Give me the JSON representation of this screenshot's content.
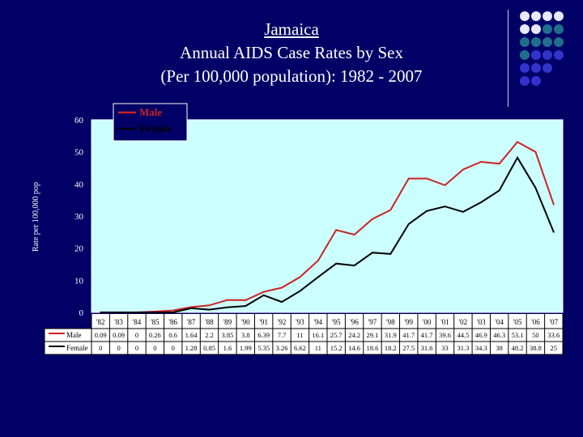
{
  "title": {
    "line1": "Jamaica",
    "line2": "Annual AIDS Case Rates by Sex",
    "line3": "(Per 100,000 population): 1982 - 2007"
  },
  "colors": {
    "background": "#000066",
    "plot_area": "#ccffff",
    "male": "#cc2222",
    "female": "#000000",
    "decor_light": "#e8e8ff",
    "decor_teal": "#1f6f8b",
    "decor_blue": "#3333cc"
  },
  "chart_data": {
    "type": "line",
    "title": "Jamaica Annual AIDS Case Rates by Sex (Per 100,000 population): 1982 - 2007",
    "xlabel": "",
    "ylabel": "Rate per 100,000 pop",
    "ylim": [
      0,
      60
    ],
    "yticks": [
      "0",
      "10",
      "20",
      "30",
      "40",
      "50",
      "60"
    ],
    "categories": [
      "'82",
      "'83",
      "'84",
      "'85",
      "'86",
      "'87",
      "'88",
      "'89",
      "'90",
      "'91",
      "'92",
      "'93",
      "'94",
      "'95",
      "'96",
      "'97",
      "'98",
      "'99",
      "'00",
      "'01",
      "'02",
      "'03",
      "'04",
      "'05",
      "'06",
      "'07"
    ],
    "legend_position": "top-left",
    "series": [
      {
        "name": "Male",
        "values": [
          0.09,
          0.09,
          0,
          0.26,
          0.6,
          1.64,
          2.2,
          3.85,
          3.8,
          6.39,
          7.7,
          11,
          16.1,
          25.7,
          24.2,
          29.1,
          31.9,
          41.7,
          41.7,
          39.6,
          44.5,
          46.9,
          46.3,
          53.1,
          50,
          33.6
        ],
        "labels": [
          "0.09",
          "0.09",
          "0",
          "0.26",
          "0.6",
          "1.64",
          "2.2",
          "3.85",
          "3.8",
          "6.39",
          "7.7",
          "11",
          "16.1",
          "25.7",
          "24.2",
          "29.1",
          "31.9",
          "41.7",
          "41.7",
          "39.6",
          "44.5",
          "46.9",
          "46.3",
          "53.1",
          "50",
          "33.6"
        ]
      },
      {
        "name": "Female",
        "values": [
          0,
          0,
          0,
          0,
          0,
          1.28,
          0.85,
          1.6,
          1.99,
          5.35,
          3.26,
          6.62,
          11,
          15.2,
          14.6,
          18.6,
          18.2,
          27.5,
          31.6,
          33,
          31.3,
          34.3,
          38,
          48.2,
          38.8,
          25
        ],
        "labels": [
          "0",
          "0",
          "0",
          "0",
          "0",
          "1.28",
          "0.85",
          "1.6",
          "1.99",
          "5.35",
          "3.26",
          "6.62",
          "11",
          "15.2",
          "14.6",
          "18.6",
          "18.2",
          "27.5",
          "31.6",
          "33",
          "31.3",
          "34.3",
          "38",
          "48.2",
          "38.8",
          "25"
        ]
      }
    ]
  }
}
